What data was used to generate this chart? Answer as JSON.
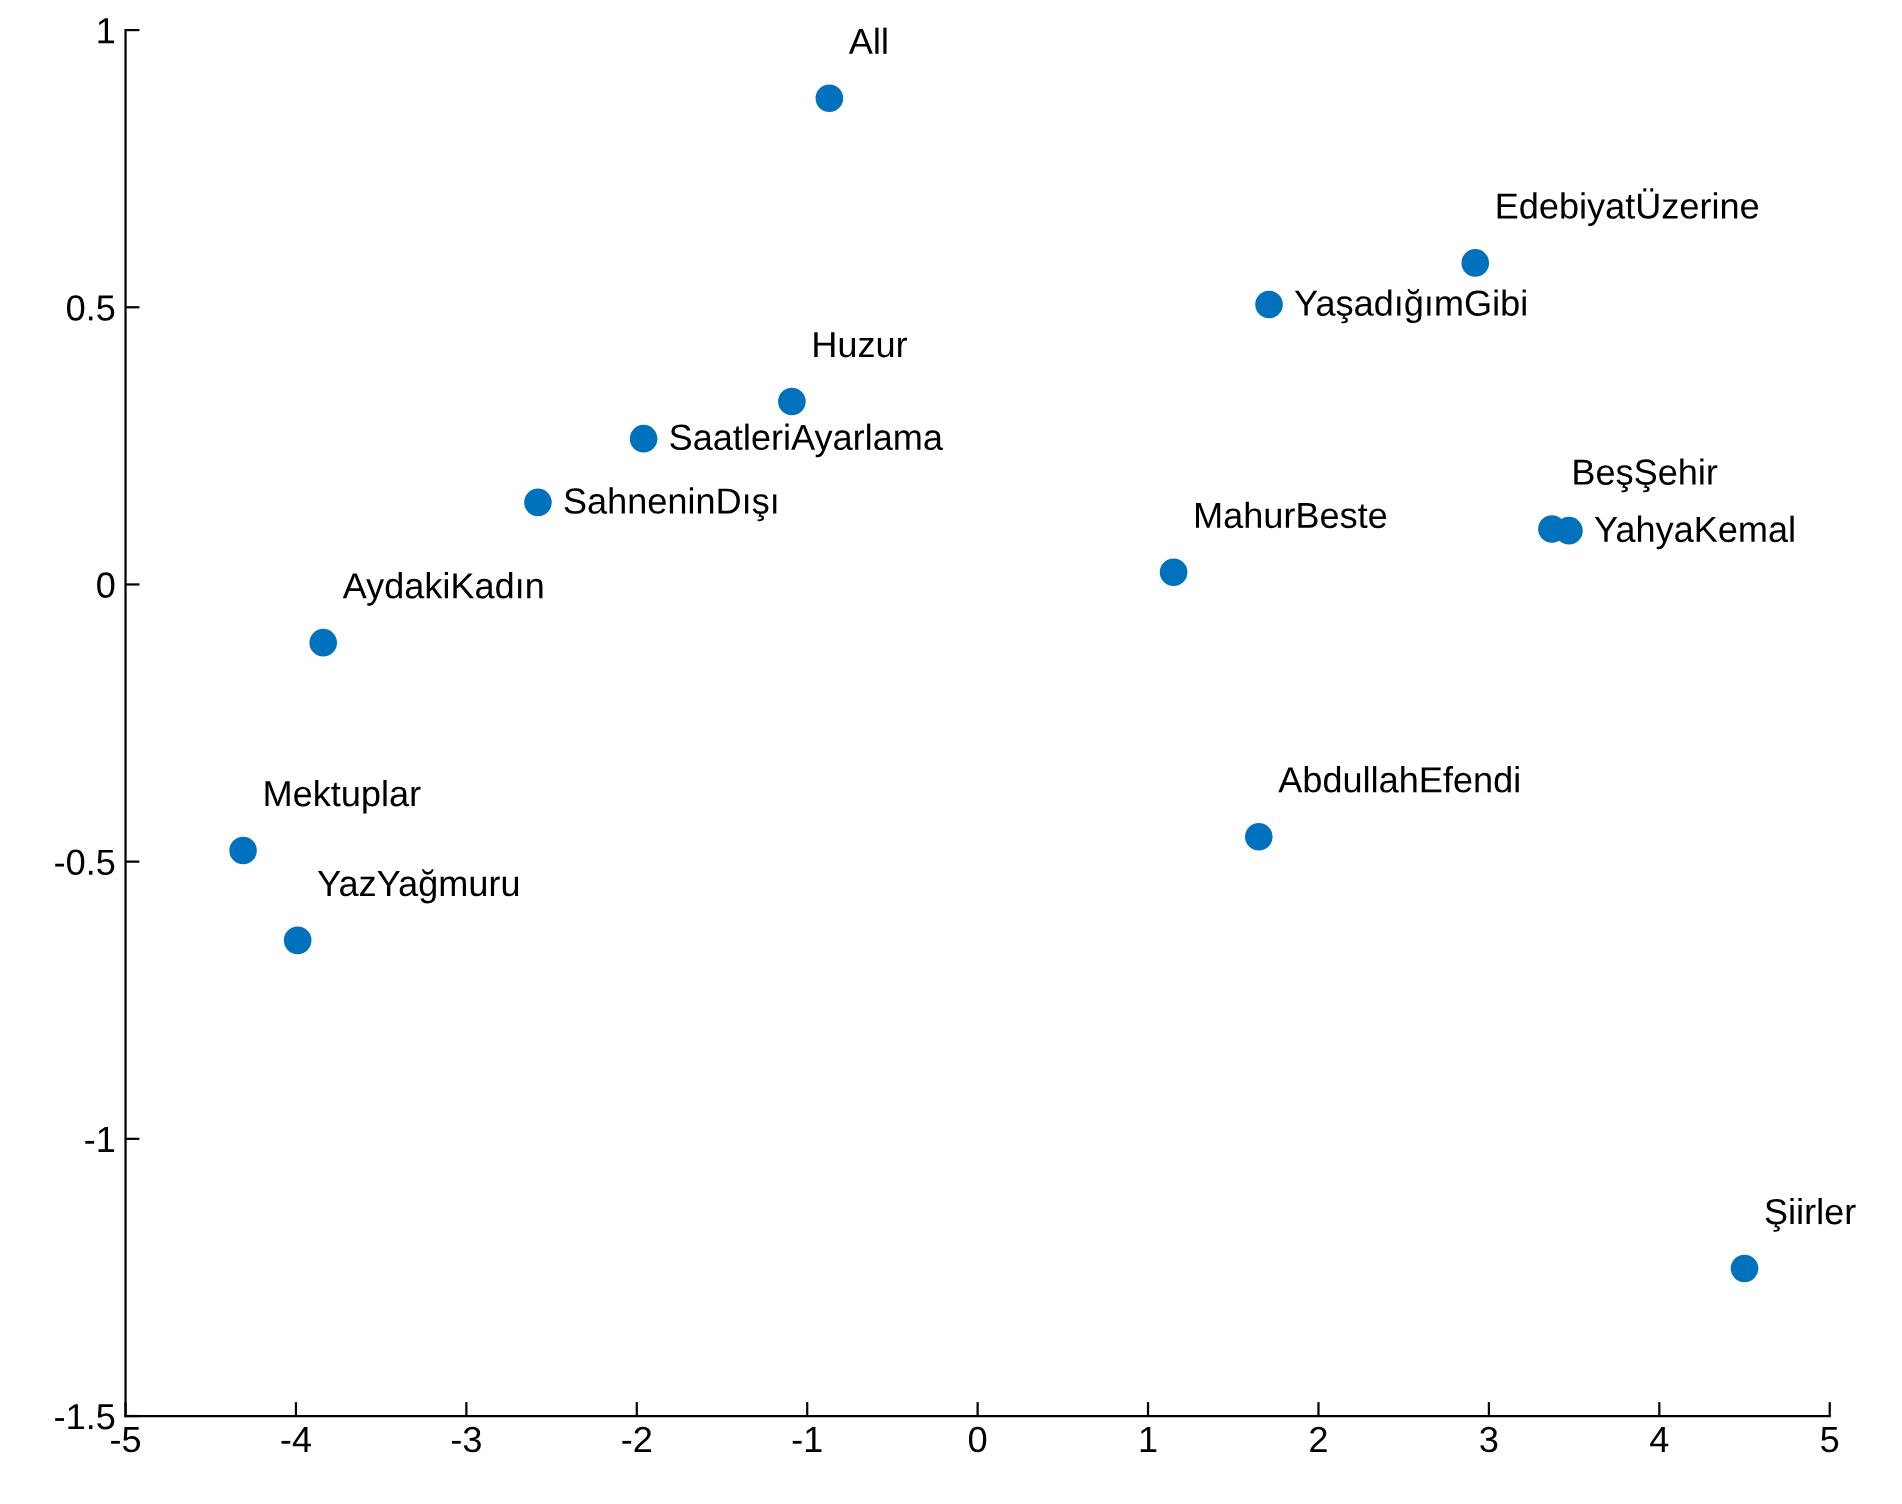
{
  "chart_data": {
    "type": "scatter",
    "color": "#0072bd",
    "marker": "circle",
    "grid": false,
    "x": [
      -0.87,
      2.92,
      1.71,
      -1.09,
      -1.96,
      -2.58,
      3.37,
      3.47,
      1.15,
      -3.84,
      1.65,
      -4.31,
      -3.99,
      4.5
    ],
    "values": [
      0.877,
      0.58,
      0.505,
      0.33,
      0.263,
      0.148,
      0.1,
      0.097,
      0.022,
      -0.105,
      -0.455,
      -0.48,
      -0.642,
      -1.234
    ],
    "annotations": [
      {
        "text": "All",
        "x": -0.87,
        "y": 0.877
      },
      {
        "text": "EdebiyatÜzerine",
        "x": 2.92,
        "y": 0.58
      },
      {
        "text": "YaşadığımGibi",
        "x": 1.71,
        "y": 0.505
      },
      {
        "text": "Huzur",
        "x": -1.09,
        "y": 0.33
      },
      {
        "text": "SaatleriAyarlama",
        "x": -1.96,
        "y": 0.263
      },
      {
        "text": "SahneninDışı",
        "x": -2.58,
        "y": 0.148
      },
      {
        "text": "BeşŞehir",
        "x": 3.37,
        "y": 0.1
      },
      {
        "text": "YahyaKemal",
        "x": 3.47,
        "y": 0.097
      },
      {
        "text": "MahurBeste",
        "x": 1.15,
        "y": 0.022
      },
      {
        "text": "AydakiKadın",
        "x": -3.84,
        "y": -0.105
      },
      {
        "text": "AbdullahEfendi",
        "x": 1.65,
        "y": -0.455
      },
      {
        "text": "Mektuplar",
        "x": -4.31,
        "y": -0.48
      },
      {
        "text": "YazYağmuru",
        "x": -3.99,
        "y": -0.642
      },
      {
        "text": "Şiirler",
        "x": 4.5,
        "y": -1.234
      }
    ],
    "xlim": [
      -5,
      5
    ],
    "ylim": [
      -1.5,
      1
    ],
    "xticks": [
      -5,
      -4,
      -3,
      -2,
      -1,
      0,
      1,
      2,
      3,
      4,
      5
    ],
    "yticks": [
      -1.5,
      -1,
      -0.5,
      0,
      0.5,
      1
    ]
  }
}
